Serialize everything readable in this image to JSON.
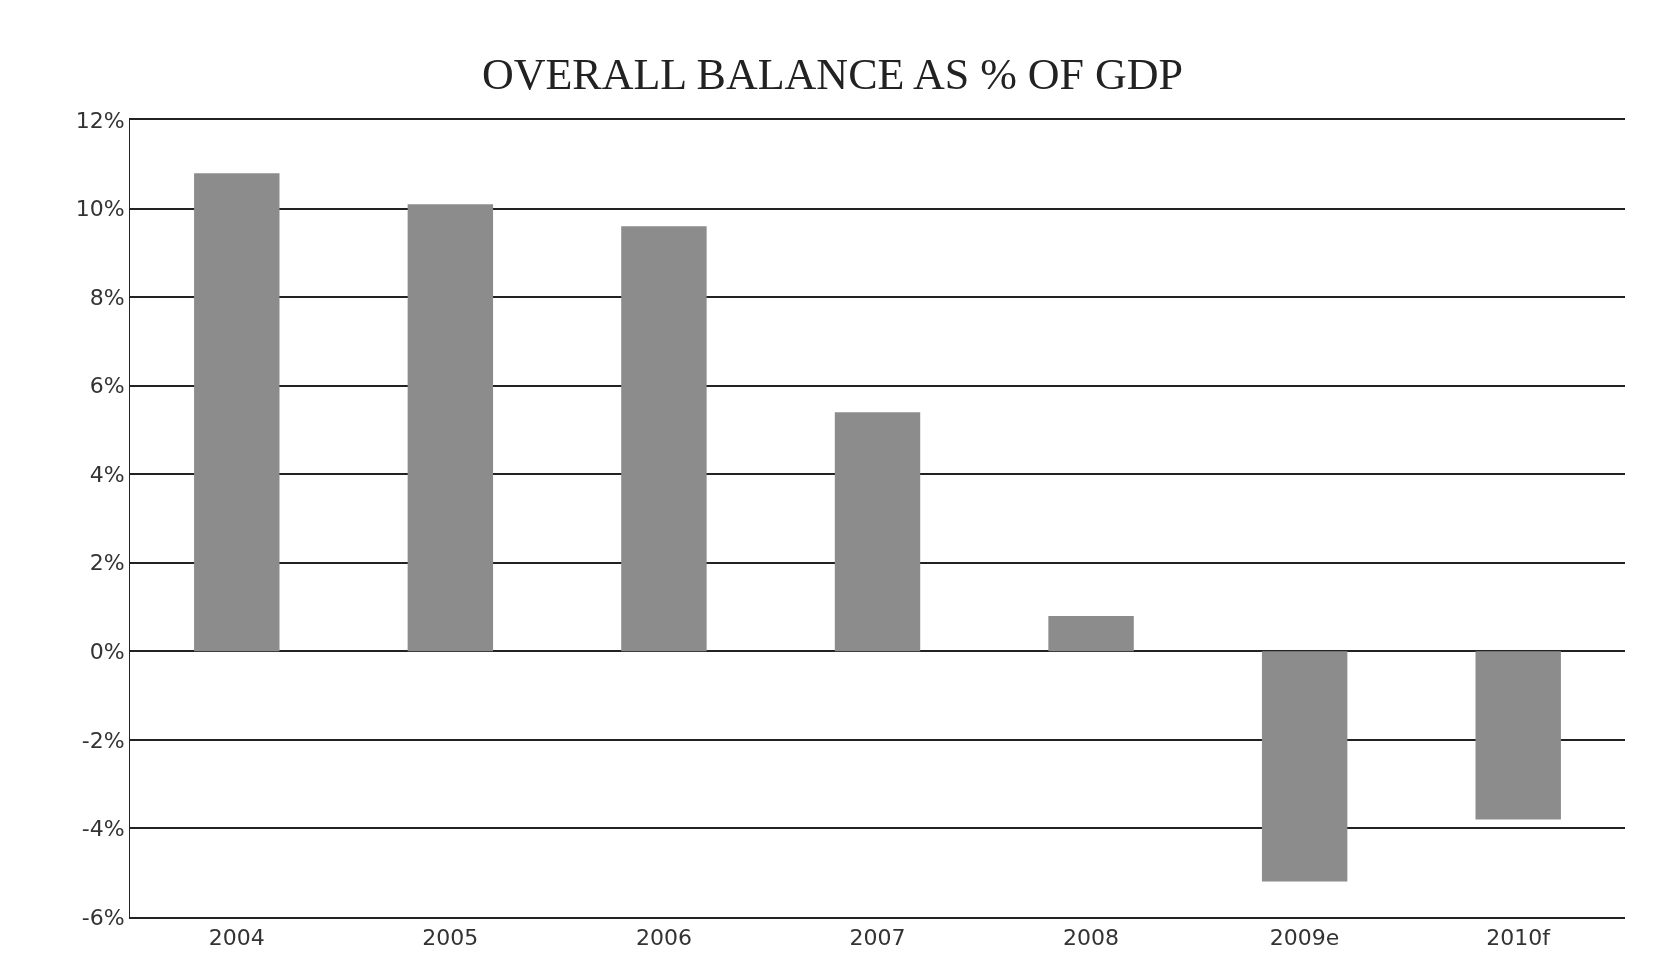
{
  "chart_data": {
    "type": "bar",
    "title": "OVERALL BALANCE AS % OF GDP",
    "categories": [
      "2004",
      "2005",
      "2006",
      "2007",
      "2008",
      "2009e",
      "2010f"
    ],
    "values": [
      10.8,
      10.1,
      9.6,
      5.4,
      0.8,
      -5.2,
      -3.8
    ],
    "color": "#8c8c8c",
    "ylim": [
      -6,
      12
    ],
    "yticks": [
      {
        "value": -6,
        "label": "-6%"
      },
      {
        "value": -4,
        "label": "-4%"
      },
      {
        "value": -2,
        "label": "-2%"
      },
      {
        "value": 0,
        "label": "0%"
      },
      {
        "value": 2,
        "label": "2%"
      },
      {
        "value": 4,
        "label": "4%"
      },
      {
        "value": 6,
        "label": "6%"
      },
      {
        "value": 8,
        "label": "8%"
      },
      {
        "value": 10,
        "label": "10%"
      },
      {
        "value": 12,
        "label": "12%"
      }
    ],
    "grid": "y"
  }
}
